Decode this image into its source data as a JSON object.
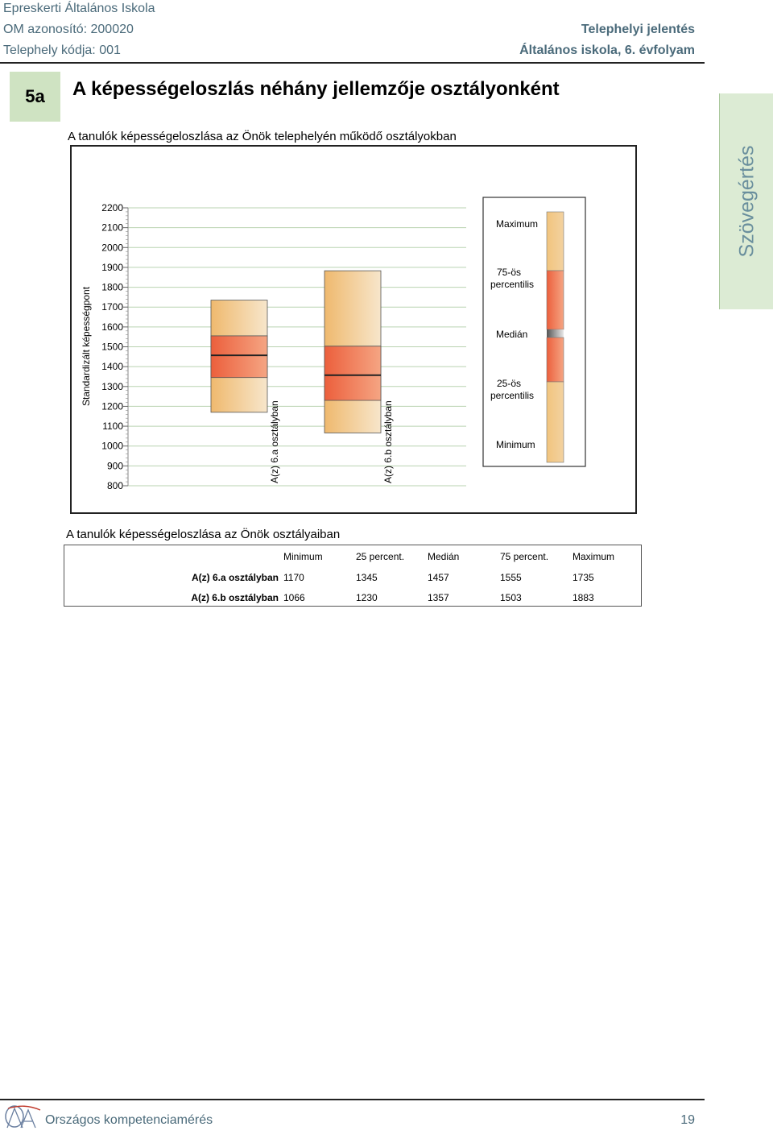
{
  "header": {
    "school": "Epreskerti Általános Iskola",
    "om_id": "OM azonosító: 200020",
    "site_code": "Telephely kódja: 001",
    "report_type": "Telephelyi jelentés",
    "grade": "Általános iskola, 6. évfolyam"
  },
  "section": {
    "number": "5a",
    "title": "A képességeloszlás néhány jellemzője osztályonként",
    "side_tab": "Szövegértés"
  },
  "chart_caption": "A tanulók képességeloszlása az Önök telephelyén működő osztályokban",
  "chart_data": {
    "type": "boxplot",
    "ylabel": "Standardizált képességpont",
    "ylim": [
      800,
      2200
    ],
    "yticks": [
      "2200",
      "2100",
      "2000",
      "1900",
      "1800",
      "1700",
      "1600",
      "1500",
      "1400",
      "1300",
      "1200",
      "1100",
      "1000",
      "900",
      "800"
    ],
    "categories": [
      "A(z) 6.a osztályban",
      "A(z) 6.b osztályban"
    ],
    "boxes": [
      {
        "min": 1170,
        "q1": 1345,
        "median": 1457,
        "q3": 1555,
        "max": 1735
      },
      {
        "min": 1066,
        "q1": 1230,
        "median": 1357,
        "q3": 1503,
        "max": 1883
      }
    ],
    "grid": true,
    "legend": {
      "position": "right",
      "items": [
        "Maximum",
        "75-ös percentilis",
        "Medián",
        "25-ös percentilis",
        "Minimum"
      ]
    },
    "colors": {
      "outer": "#f0c27a",
      "inner": "#ee6a45",
      "outer_light": "#f6e3c6",
      "inner_light": "#f6a080"
    }
  },
  "table": {
    "caption": "A tanulók képességeloszlása az Önök osztályaiban",
    "columns": [
      "Minimum",
      "25 percent.",
      "Medián",
      "75 percent.",
      "Maximum"
    ],
    "rows": [
      {
        "label": "A(z) 6.a osztályban",
        "values": [
          "1170",
          "1345",
          "1457",
          "1555",
          "1735"
        ]
      },
      {
        "label": "A(z) 6.b osztályban",
        "values": [
          "1066",
          "1230",
          "1357",
          "1503",
          "1883"
        ]
      }
    ]
  },
  "footer": {
    "org": "Országos kompetenciamérés",
    "page": "19"
  }
}
